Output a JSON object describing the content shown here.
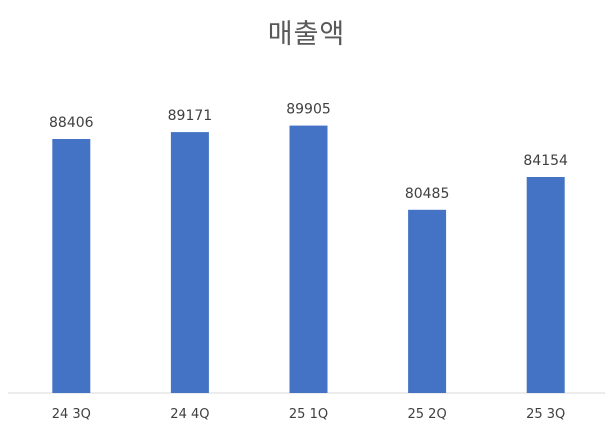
{
  "chart_data": {
    "type": "bar",
    "title": "매출액",
    "categories": [
      "24 3Q",
      "24 4Q",
      "25 1Q",
      "25 2Q",
      "25 3Q"
    ],
    "values": [
      88406,
      89171,
      89905,
      80485,
      84154
    ],
    "xlabel": "",
    "ylabel": "",
    "ylim": [
      60000,
      95000
    ],
    "grid": false,
    "legend": "none",
    "data_labels": true,
    "colors": {
      "bar": "#4472C4",
      "axis": "#D9D9D9",
      "label": "#404040",
      "title": "#595959"
    }
  }
}
